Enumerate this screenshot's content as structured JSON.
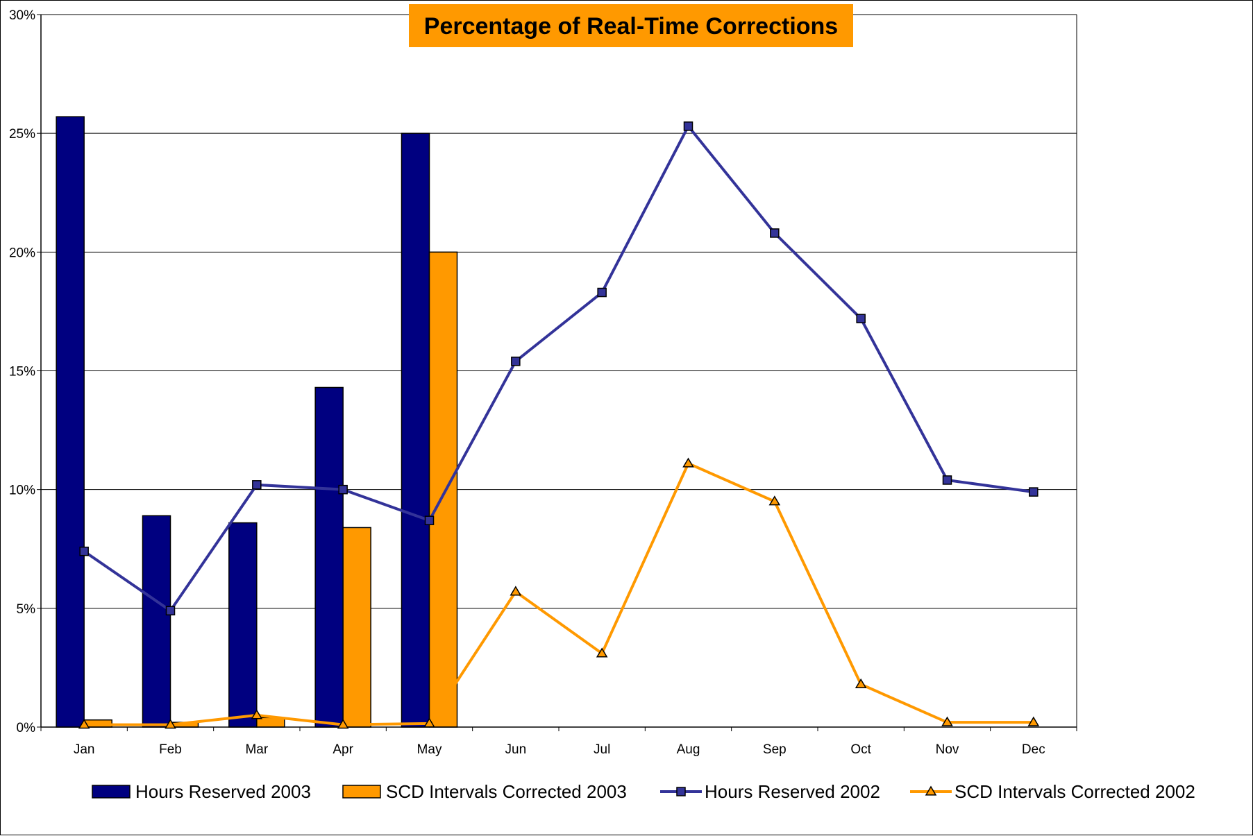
{
  "chart_data": {
    "type": "bar",
    "title": "Percentage of Real-Time Corrections",
    "categories": [
      "Jan",
      "Feb",
      "Mar",
      "Apr",
      "May",
      "Jun",
      "Jul",
      "Aug",
      "Sep",
      "Oct",
      "Nov",
      "Dec"
    ],
    "y_ticks": [
      "0%",
      "5%",
      "10%",
      "15%",
      "20%",
      "25%",
      "30%"
    ],
    "ylim": [
      0,
      30
    ],
    "y_unit": "%",
    "grid": true,
    "legend_position": "bottom",
    "series": [
      {
        "name": "Hours Reserved 2003",
        "kind": "bar",
        "color": "#000080",
        "values": [
          25.7,
          8.9,
          8.6,
          14.3,
          25.0,
          null,
          null,
          null,
          null,
          null,
          null,
          null
        ]
      },
      {
        "name": "SCD Intervals Corrected 2003",
        "kind": "bar",
        "color": "#FF9900",
        "values": [
          0.3,
          0.2,
          0.4,
          8.4,
          20.0,
          null,
          null,
          null,
          null,
          null,
          null,
          null
        ]
      },
      {
        "name": "Hours Reserved 2002",
        "kind": "line",
        "marker": "square",
        "color": "#333399",
        "values": [
          7.4,
          4.9,
          10.2,
          10.0,
          8.7,
          15.4,
          18.3,
          25.3,
          20.8,
          17.2,
          10.4,
          9.9
        ]
      },
      {
        "name": "SCD Intervals Corrected 2002",
        "kind": "line",
        "marker": "triangle",
        "color": "#FF9900",
        "values": [
          0.1,
          0.1,
          0.5,
          0.1,
          0.15,
          5.7,
          3.1,
          11.1,
          9.5,
          1.8,
          0.2,
          0.2
        ]
      }
    ]
  }
}
